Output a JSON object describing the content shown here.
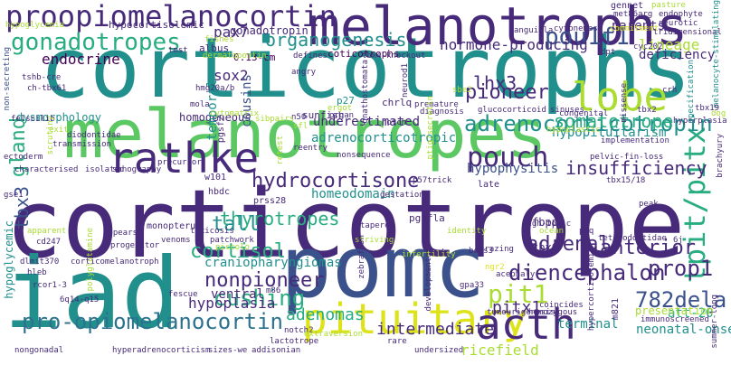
{
  "words": [
    {
      "text": "corticotrophs"
    },
    {
      "text": "corticotrope"
    },
    {
      "text": "melanotrophs"
    },
    {
      "text": "melanotropes"
    },
    {
      "text": "pomc"
    },
    {
      "text": "iad"
    },
    {
      "text": "proopiomelanocortin"
    },
    {
      "text": "pituitary"
    },
    {
      "text": "rathke"
    },
    {
      "text": "acth"
    },
    {
      "text": "gonadotropes"
    },
    {
      "text": "pou1f1"
    },
    {
      "text": "tpit/pitx"
    },
    {
      "text": "pouch"
    },
    {
      "text": "lobe"
    },
    {
      "text": "adrenocorticotropin"
    },
    {
      "text": "hydrocortisone"
    },
    {
      "text": "pit1"
    },
    {
      "text": "pro-opiomelanocortin"
    },
    {
      "text": "782dela"
    },
    {
      "text": "cushing"
    },
    {
      "text": "organogenesis"
    },
    {
      "text": "hormone-producing"
    },
    {
      "text": "nonpioneer"
    },
    {
      "text": "thyrotropes"
    },
    {
      "text": "cortisol"
    },
    {
      "text": "diencephalon"
    },
    {
      "text": "prop1"
    },
    {
      "text": "adrenal"
    },
    {
      "text": "lhx3"
    },
    {
      "text": "somatotrope"
    },
    {
      "text": "pioneer"
    },
    {
      "text": "insufficiency"
    },
    {
      "text": "tbx3"
    },
    {
      "text": "gland"
    },
    {
      "text": "adenomas"
    },
    {
      "text": "intermediate"
    },
    {
      "text": "tall"
    },
    {
      "text": "pitx1"
    },
    {
      "text": "anterior"
    },
    {
      "text": "sox2"
    },
    {
      "text": "pax7"
    },
    {
      "text": "endocrine"
    },
    {
      "text": "hypoplasia"
    },
    {
      "text": "craniopharyngiomas"
    },
    {
      "text": "adrenocorticotropic"
    },
    {
      "text": "hypophysitis"
    },
    {
      "text": "homeodomain"
    },
    {
      "text": "underestimated"
    },
    {
      "text": "hypopituitarism"
    },
    {
      "text": "lineage"
    },
    {
      "text": "parents"
    },
    {
      "text": "deficiency"
    },
    {
      "text": "neonatal-onset"
    },
    {
      "text": "terminal"
    },
    {
      "text": "ventral"
    },
    {
      "text": "homogeneous"
    },
    {
      "text": "cousins"
    },
    {
      "text": "temporal"
    },
    {
      "text": "dysmorphology"
    },
    {
      "text": "hypoglycemic"
    },
    {
      "text": "att-20"
    },
    {
      "text": "presentation"
    },
    {
      "text": "gonadotropin"
    },
    {
      "text": "hypocortisolemic"
    },
    {
      "text": "albus"
    },
    {
      "text": "0.13-cm"
    },
    {
      "text": "coticotrophs"
    },
    {
      "text": "tbx6"
    },
    {
      "text": "fbpp"
    },
    {
      "text": "ricefield"
    },
    {
      "text": "gennet"
    },
    {
      "text": "met86arg"
    },
    {
      "text": "neurotic"
    },
    {
      "text": "tridimensional"
    },
    {
      "text": "cyc202"
    },
    {
      "text": "pasture"
    },
    {
      "text": "endophyte"
    },
    {
      "text": "commitment"
    },
    {
      "text": "cytonemes"
    },
    {
      "text": "anguilla"
    },
    {
      "text": "tbx4-knockout"
    },
    {
      "text": "defines"
    },
    {
      "text": "fishes"
    },
    {
      "text": "dermatopontin"
    },
    {
      "text": "tmst"
    },
    {
      "text": "hypoglycemia"
    },
    {
      "text": "tshb-cre"
    },
    {
      "text": "ch-tbx61"
    },
    {
      "text": "hmg20a/b"
    },
    {
      "text": "mola"
    },
    {
      "text": "p27"
    },
    {
      "text": "angry"
    },
    {
      "text": "chrlq"
    },
    {
      "text": "notch"
    },
    {
      "text": "premature"
    },
    {
      "text": "diagnosis"
    },
    {
      "text": "n50"
    },
    {
      "text": "sunfish"
    },
    {
      "text": "pgsf2"
    },
    {
      "text": "diodontidae"
    },
    {
      "text": "transmission"
    },
    {
      "text": "ectoderm"
    },
    {
      "text": "characterised"
    },
    {
      "text": "isolated"
    },
    {
      "text": "sonography"
    },
    {
      "text": "precursor"
    },
    {
      "text": "w101"
    },
    {
      "text": "hbdc"
    },
    {
      "text": "prss28"
    },
    {
      "text": "reentry"
    },
    {
      "text": "nonsequence"
    },
    {
      "text": "glucocorticoid"
    },
    {
      "text": "tetraodontidae"
    },
    {
      "text": "late"
    },
    {
      "text": "peak"
    },
    {
      "text": "gse1"
    },
    {
      "text": "apparent"
    },
    {
      "text": "cd247"
    },
    {
      "text": "appears"
    },
    {
      "text": "progenitor"
    },
    {
      "text": "monopterus"
    },
    {
      "text": "toxicosis"
    },
    {
      "text": "venoms"
    },
    {
      "text": "patchwork"
    },
    {
      "text": "piccolo"
    },
    {
      "text": "tapered"
    },
    {
      "text": "striving"
    },
    {
      "text": "pgsfla"
    },
    {
      "text": "gestation"
    },
    {
      "text": "p57trick"
    },
    {
      "text": "bcas3"
    },
    {
      "text": "grazing"
    },
    {
      "text": "high-toxic"
    },
    {
      "text": "ocean"
    },
    {
      "text": "6j"
    },
    {
      "text": "dlmit370"
    },
    {
      "text": "corticomelanotroph"
    },
    {
      "text": "hleb"
    },
    {
      "text": "rcor1-3"
    },
    {
      "text": "6q14-q15"
    },
    {
      "text": "fescue"
    },
    {
      "text": "m86"
    },
    {
      "text": "notch2"
    },
    {
      "text": "lactotrope"
    },
    {
      "text": "extraversion"
    },
    {
      "text": "gnrh"
    },
    {
      "text": "acephaly"
    },
    {
      "text": "gpa33"
    },
    {
      "text": "coincides"
    },
    {
      "text": "homozygous"
    },
    {
      "text": "tumourigenesis"
    },
    {
      "text": "m821"
    },
    {
      "text": "immunoscreened"
    },
    {
      "text": "nongonadal"
    },
    {
      "text": "hyperadrenocorticism"
    },
    {
      "text": "sizes-we"
    },
    {
      "text": "addisonian"
    },
    {
      "text": "rare"
    },
    {
      "text": "undersized"
    },
    {
      "text": "hyperplasia"
    },
    {
      "text": "brachyury"
    },
    {
      "text": "crh"
    },
    {
      "text": "dog"
    },
    {
      "text": "tbx2"
    },
    {
      "text": "summer-long"
    },
    {
      "text": "implementation"
    },
    {
      "text": "pelvic-fin-loss"
    },
    {
      "text": "hypoplastic"
    },
    {
      "text": "congenital"
    },
    {
      "text": "sinuses"
    },
    {
      "text": "specification"
    },
    {
      "text": "missense"
    },
    {
      "text": "dpt"
    },
    {
      "text": "non-secreting"
    },
    {
      "text": "cytomatrix"
    },
    {
      "text": "exit"
    },
    {
      "text": "felscilib"
    },
    {
      "text": "scrutiny"
    },
    {
      "text": "sibpairs"
    },
    {
      "text": "organ"
    },
    {
      "text": "ergot"
    },
    {
      "text": "sfl"
    },
    {
      "text": "retest"
    },
    {
      "text": "gnathostomata"
    },
    {
      "text": "neurod1"
    },
    {
      "text": "ptig/secretin"
    },
    {
      "text": "sbe2"
    },
    {
      "text": "tbx15/18"
    },
    {
      "text": "developmental"
    },
    {
      "text": "hypercortisolemia"
    },
    {
      "text": "ngr2"
    },
    {
      "text": "zebrafish"
    },
    {
      "text": "peq"
    },
    {
      "text": "melanocyte-stimulating"
    },
    {
      "text": "tbx19"
    },
    {
      "text": "polyglutamine"
    },
    {
      "text": "identity"
    },
    {
      "text": "infertility"
    }
  ]
}
